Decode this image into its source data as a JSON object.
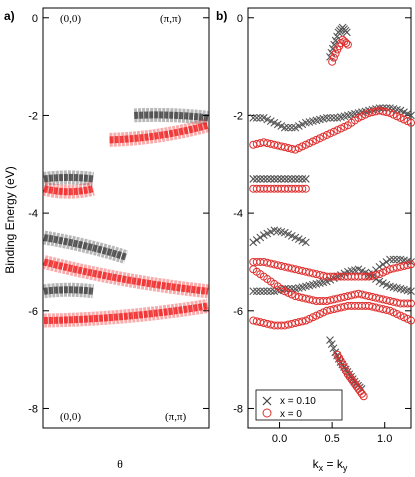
{
  "figure": {
    "panel_a_label": "a)",
    "panel_b_label": "b)",
    "ylabel": "Binding Energy (eV)",
    "panel_a_xlabel": "θ",
    "panel_b_xlabel_main": "k",
    "panel_b_xlabel_sub1": "x",
    "panel_b_xlabel_eq": " = k",
    "panel_b_xlabel_sub2": "y",
    "corner_top_left": "(0,0)",
    "corner_top_right": "(π,π)",
    "corner_bottom_left": "(0,0)",
    "corner_bottom_right": "(π,π)"
  },
  "colors": {
    "black_series": "#555555",
    "red_series": "#e03030",
    "intensity_black": "#333333",
    "intensity_red": "#ee1111"
  },
  "chart_data": [
    {
      "type": "heatmap",
      "panel": "a",
      "ylim": [
        -8.4,
        0.2
      ],
      "yticks": [
        0,
        -2,
        -4,
        -6,
        -8
      ],
      "bands": [
        {
          "color": "black",
          "theta": [
            0.55,
            1.0
          ],
          "E": [
            -2.0,
            -2.05
          ]
        },
        {
          "color": "black",
          "theta": [
            0.0,
            0.3
          ],
          "E": [
            -3.3,
            -3.3
          ]
        },
        {
          "color": "black",
          "theta": [
            0.0,
            0.5
          ],
          "E": [
            -4.5,
            -4.9
          ]
        },
        {
          "color": "black",
          "theta": [
            0.0,
            0.3
          ],
          "E": [
            -5.6,
            -5.6
          ]
        },
        {
          "color": "red",
          "theta": [
            0.4,
            1.0
          ],
          "E": [
            -2.5,
            -2.2
          ]
        },
        {
          "color": "red",
          "theta": [
            0.0,
            0.3
          ],
          "E": [
            -3.5,
            -3.5
          ]
        },
        {
          "color": "red",
          "theta": [
            0.0,
            1.0
          ],
          "E": [
            -5.0,
            -5.6
          ]
        },
        {
          "color": "red",
          "theta": [
            0.0,
            1.0
          ],
          "E": [
            -6.2,
            -5.9
          ]
        }
      ]
    },
    {
      "type": "scatter",
      "panel": "b",
      "xlabel": "kx = ky",
      "xlim": [
        -0.3,
        1.25
      ],
      "ylim": [
        -8.4,
        0.2
      ],
      "xticks": [
        0.0,
        0.5,
        1.0
      ],
      "yticks": [
        0,
        -2,
        -4,
        -6,
        -8
      ],
      "legend": "bottom-left",
      "series": [
        {
          "name": "x = 0.10",
          "marker": "x",
          "branches": [
            {
              "x": [
                0.48,
                0.52,
                0.56,
                0.6,
                0.64
              ],
              "y": [
                -0.8,
                -0.55,
                -0.3,
                -0.2,
                -0.3
              ]
            },
            {
              "x": [
                -0.25,
                -0.15,
                -0.05,
                0.05,
                0.15,
                0.25,
                0.35,
                0.45,
                0.55,
                0.65,
                0.75,
                0.85,
                0.95,
                1.05,
                1.15,
                1.25
              ],
              "y": [
                -2.05,
                -2.05,
                -2.15,
                -2.25,
                -2.25,
                -2.15,
                -2.1,
                -2.05,
                -2.05,
                -2.0,
                -1.95,
                -1.9,
                -1.85,
                -1.85,
                -1.9,
                -2.0
              ]
            },
            {
              "x": [
                -0.25,
                -0.15,
                -0.05,
                0.05,
                0.15,
                0.25
              ],
              "y": [
                -3.3,
                -3.3,
                -3.3,
                -3.3,
                -3.3,
                -3.3
              ]
            },
            {
              "x": [
                -0.25,
                -0.15,
                -0.05,
                0.05,
                0.15,
                0.25
              ],
              "y": [
                -4.6,
                -4.45,
                -4.35,
                -4.4,
                -4.5,
                -4.6
              ]
            },
            {
              "x": [
                0.85,
                0.95,
                1.05,
                1.15,
                1.25
              ],
              "y": [
                -5.3,
                -5.1,
                -4.95,
                -4.95,
                -5.0
              ]
            },
            {
              "x": [
                -0.25,
                -0.15,
                -0.05,
                0.05,
                0.15,
                0.25,
                0.35,
                0.45,
                0.55,
                0.65,
                0.75,
                0.85,
                0.95,
                1.05,
                1.15,
                1.25
              ],
              "y": [
                -5.6,
                -5.6,
                -5.6,
                -5.55,
                -5.55,
                -5.5,
                -5.45,
                -5.4,
                -5.3,
                -5.2,
                -5.15,
                -5.25,
                -5.4,
                -5.5,
                -5.55,
                -5.6
              ]
            },
            {
              "x": [
                0.48,
                0.53,
                0.58,
                0.63,
                0.68,
                0.73,
                0.78
              ],
              "y": [
                -6.6,
                -6.85,
                -7.05,
                -7.2,
                -7.35,
                -7.5,
                -7.6
              ]
            }
          ]
        },
        {
          "name": "x = 0",
          "marker": "o",
          "branches": [
            {
              "x": [
                0.5,
                0.55,
                0.6,
                0.65
              ],
              "y": [
                -0.9,
                -0.65,
                -0.45,
                -0.55
              ]
            },
            {
              "x": [
                -0.25,
                -0.15,
                -0.05,
                0.05,
                0.15,
                0.25,
                0.35,
                0.45,
                0.55,
                0.65,
                0.75,
                0.85,
                0.95,
                1.05,
                1.15,
                1.25
              ],
              "y": [
                -2.6,
                -2.55,
                -2.6,
                -2.65,
                -2.7,
                -2.6,
                -2.5,
                -2.4,
                -2.3,
                -2.2,
                -2.05,
                -1.95,
                -1.9,
                -1.95,
                -2.05,
                -2.15
              ]
            },
            {
              "x": [
                -0.25,
                -0.15,
                -0.05,
                0.05,
                0.15,
                0.25
              ],
              "y": [
                -3.5,
                -3.5,
                -3.5,
                -3.5,
                -3.5,
                -3.5
              ]
            },
            {
              "x": [
                -0.25,
                -0.15,
                -0.05,
                0.05,
                0.15,
                0.25,
                0.35,
                0.45,
                0.55,
                0.65,
                0.75,
                0.85,
                0.95,
                1.05,
                1.15,
                1.25
              ],
              "y": [
                -5.0,
                -5.0,
                -5.05,
                -5.1,
                -5.15,
                -5.2,
                -5.25,
                -5.3,
                -5.3,
                -5.3,
                -5.3,
                -5.3,
                -5.25,
                -5.15,
                -5.1,
                -5.05
              ]
            },
            {
              "x": [
                -0.25,
                -0.15,
                -0.05,
                0.05,
                0.15,
                0.25,
                0.35,
                0.45,
                0.55,
                0.65,
                0.75,
                0.85,
                0.95,
                1.05,
                1.15,
                1.25
              ],
              "y": [
                -5.15,
                -5.3,
                -5.45,
                -5.6,
                -5.7,
                -5.75,
                -5.8,
                -5.8,
                -5.75,
                -5.7,
                -5.65,
                -5.7,
                -5.75,
                -5.8,
                -5.85,
                -5.85
              ]
            },
            {
              "x": [
                -0.25,
                -0.15,
                -0.05,
                0.05,
                0.15,
                0.25,
                0.35,
                0.45,
                0.55,
                0.65,
                0.75,
                0.85,
                0.95,
                1.05,
                1.15,
                1.25
              ],
              "y": [
                -6.2,
                -6.25,
                -6.3,
                -6.3,
                -6.25,
                -6.2,
                -6.1,
                -6.0,
                -5.95,
                -5.9,
                -5.9,
                -5.9,
                -5.95,
                -6.0,
                -6.1,
                -6.2
              ]
            },
            {
              "x": [
                0.55,
                0.6,
                0.65,
                0.7,
                0.75,
                0.8
              ],
              "y": [
                -6.9,
                -7.1,
                -7.3,
                -7.45,
                -7.6,
                -7.75
              ]
            }
          ]
        }
      ]
    }
  ]
}
